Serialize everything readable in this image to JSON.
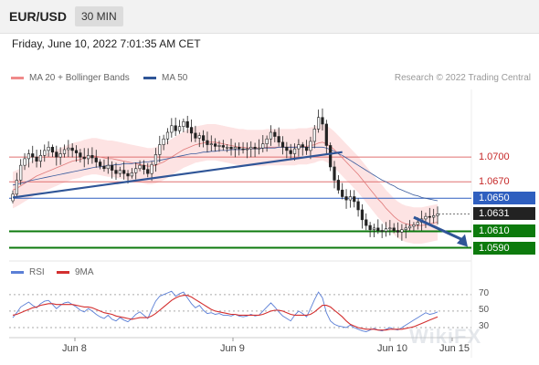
{
  "header": {
    "symbol": "EUR/USD",
    "timeframe": "30 MIN",
    "datetime": "Friday, June 10, 2022 7:01:35 AM CET"
  },
  "legend": {
    "ma20_label": "MA 20 + Bollinger Bands",
    "ma20_color": "#f08a8a",
    "ma50_label": "MA 50",
    "ma50_color": "#2f5597",
    "credit": "Research © 2022 Trading Central"
  },
  "rsi_legend": {
    "rsi_label": "RSI",
    "rsi_color": "#5b7fd6",
    "ma9_label": "9MA",
    "ma9_color": "#d32f2f"
  },
  "watermark": "WikiFX",
  "chart_data": [
    {
      "type": "candlestick",
      "title": "",
      "ylim": [
        1.0574,
        1.0782
      ],
      "price_levels": [
        {
          "label": "1.0700",
          "value": 1.07,
          "color": "#e07070",
          "kind": "resistance"
        },
        {
          "label": "1.0670",
          "value": 1.067,
          "color": "#e07070",
          "kind": "resistance"
        },
        {
          "label": "1.0650",
          "value": 1.065,
          "color": "#2f5fbf",
          "kind": "pivot"
        },
        {
          "label": "1.0631",
          "value": 1.0631,
          "color": "#222222",
          "kind": "last"
        },
        {
          "label": "1.0610",
          "value": 1.061,
          "color": "#0d7a0d",
          "kind": "support"
        },
        {
          "label": "1.0590",
          "value": 1.059,
          "color": "#0d7a0d",
          "kind": "support"
        }
      ],
      "x_ticks": [
        "Jun 8",
        "Jun 9",
        "Jun 10",
        "Jun 15"
      ],
      "close": [
        1.0655,
        1.0672,
        1.069,
        1.0698,
        1.0704,
        1.07,
        1.0695,
        1.0702,
        1.0708,
        1.0712,
        1.0706,
        1.07,
        1.0704,
        1.0709,
        1.0711,
        1.0708,
        1.0705,
        1.07,
        1.0698,
        1.0702,
        1.0699,
        1.0694,
        1.0689,
        1.0686,
        1.069,
        1.0684,
        1.068,
        1.0684,
        1.068,
        1.0677,
        1.0681,
        1.0686,
        1.069,
        1.0685,
        1.068,
        1.0691,
        1.0703,
        1.0715,
        1.0722,
        1.073,
        1.0738,
        1.0732,
        1.0737,
        1.0743,
        1.0736,
        1.0729,
        1.0723,
        1.0726,
        1.072,
        1.0715,
        1.0716,
        1.0713,
        1.0714,
        1.0712,
        1.0712,
        1.071,
        1.0712,
        1.071,
        1.0709,
        1.071,
        1.0712,
        1.071,
        1.0711,
        1.0716,
        1.0722,
        1.073,
        1.0725,
        1.0718,
        1.0712,
        1.0708,
        1.0704,
        1.071,
        1.0715,
        1.0712,
        1.0708,
        1.0719,
        1.0734,
        1.0748,
        1.074,
        1.0714,
        1.0688,
        1.0672,
        1.066,
        1.0652,
        1.0648,
        1.0652,
        1.0646,
        1.0636,
        1.0624,
        1.0617,
        1.0612,
        1.0614,
        1.0611,
        1.061,
        1.0613,
        1.0614,
        1.0611,
        1.0609,
        1.0612,
        1.0614,
        1.0616,
        1.0618,
        1.0621,
        1.0625,
        1.0628,
        1.0627,
        1.0629,
        1.0631
      ],
      "ma20": [
        1.066,
        1.0662,
        1.0665,
        1.0668,
        1.0671,
        1.0674,
        1.0677,
        1.0679,
        1.0681,
        1.0683,
        1.0685,
        1.0687,
        1.0689,
        1.0691,
        1.0693,
        1.0695,
        1.0696,
        1.0697,
        1.0699,
        1.07,
        1.0701,
        1.0701,
        1.07,
        1.0699,
        1.0698,
        1.0698,
        1.0697,
        1.0696,
        1.0695,
        1.0694,
        1.0693,
        1.0692,
        1.0691,
        1.069,
        1.0689,
        1.0689,
        1.069,
        1.0692,
        1.0694,
        1.0697,
        1.07,
        1.0703,
        1.0706,
        1.0709,
        1.0711,
        1.0713,
        1.0715,
        1.0716,
        1.0717,
        1.0718,
        1.0718,
        1.0718,
        1.0717,
        1.0716,
        1.0715,
        1.0714,
        1.0713,
        1.0712,
        1.0712,
        1.0711,
        1.0711,
        1.0711,
        1.0711,
        1.0711,
        1.0712,
        1.0712,
        1.0712,
        1.0712,
        1.0712,
        1.0712,
        1.0712,
        1.0712,
        1.0713,
        1.0713,
        1.0713,
        1.0714,
        1.0715,
        1.0717,
        1.0718,
        1.0716,
        1.0713,
        1.0709,
        1.0704,
        1.0699,
        1.0694,
        1.0689,
        1.0684,
        1.0679,
        1.0673,
        1.0667,
        1.0661,
        1.0655,
        1.0649,
        1.0644,
        1.0638,
        1.0633,
        1.0628,
        1.0624,
        1.0621,
        1.0619,
        1.0618,
        1.0617,
        1.0617,
        1.0617,
        1.0618,
        1.0619,
        1.062,
        1.0621
      ],
      "ma50": [
        1.0666,
        1.0667,
        1.0668,
        1.0669,
        1.0671,
        1.0672,
        1.0673,
        1.0674,
        1.0675,
        1.0676,
        1.0677,
        1.0678,
        1.0679,
        1.068,
        1.0681,
        1.0682,
        1.0683,
        1.0684,
        1.0685,
        1.0686,
        1.0687,
        1.0688,
        1.0688,
        1.0689,
        1.069,
        1.069,
        1.0691,
        1.0691,
        1.0692,
        1.0692,
        1.0692,
        1.0693,
        1.0693,
        1.0694,
        1.0694,
        1.0695,
        1.0695,
        1.0696,
        1.0697,
        1.0698,
        1.0699,
        1.07,
        1.0701,
        1.0702,
        1.0703,
        1.0704,
        1.0704,
        1.0705,
        1.0706,
        1.0706,
        1.0707,
        1.0707,
        1.0708,
        1.0708,
        1.0708,
        1.0709,
        1.0709,
        1.0709,
        1.0709,
        1.071,
        1.071,
        1.071,
        1.071,
        1.0711,
        1.0711,
        1.0711,
        1.0711,
        1.0712,
        1.0712,
        1.0712,
        1.0712,
        1.0712,
        1.0712,
        1.0712,
        1.0712,
        1.0712,
        1.0712,
        1.0712,
        1.0712,
        1.0711,
        1.0709,
        1.0707,
        1.0704,
        1.0702,
        1.0699,
        1.0696,
        1.0693,
        1.069,
        1.0687,
        1.0684,
        1.0681,
        1.0678,
        1.0675,
        1.0672,
        1.067,
        1.0667,
        1.0665,
        1.0662,
        1.066,
        1.0658,
        1.0656,
        1.0654,
        1.0653,
        1.0651,
        1.065,
        1.0649,
        1.0648,
        1.0647
      ],
      "bollinger_width": 0.0022,
      "trendline": {
        "from": [
          0,
          1.0651
        ],
        "to": [
          83,
          1.0706
        ]
      },
      "projection": {
        "from": [
          101,
          1.0627
        ],
        "to": [
          107,
          1.0591
        ]
      }
    },
    {
      "type": "line",
      "title": "RSI",
      "ylim": [
        20,
        82
      ],
      "y_ticks": [
        70,
        50,
        30
      ],
      "series": [
        {
          "name": "RSI",
          "values": [
            42,
            48,
            55,
            58,
            61,
            57,
            54,
            59,
            62,
            63,
            58,
            53,
            57,
            60,
            61,
            58,
            55,
            51,
            49,
            53,
            50,
            46,
            43,
            41,
            45,
            40,
            38,
            42,
            39,
            37,
            41,
            46,
            49,
            45,
            41,
            52,
            62,
            68,
            70,
            72,
            74,
            68,
            71,
            73,
            66,
            59,
            54,
            57,
            51,
            47,
            48,
            46,
            47,
            45,
            45,
            44,
            46,
            44,
            43,
            44,
            46,
            44,
            45,
            50,
            55,
            60,
            55,
            49,
            44,
            41,
            38,
            45,
            50,
            47,
            43,
            53,
            64,
            73,
            66,
            48,
            38,
            34,
            32,
            31,
            30,
            33,
            30,
            28,
            26,
            25,
            27,
            29,
            27,
            26,
            28,
            30,
            28,
            27,
            30,
            33,
            36,
            39,
            42,
            45,
            48,
            46,
            47,
            49
          ]
        },
        {
          "name": "9MA",
          "values": [
            45,
            46,
            48,
            50,
            52,
            54,
            55,
            57,
            58,
            59,
            59,
            58,
            58,
            58,
            58,
            58,
            57,
            56,
            55,
            55,
            54,
            52,
            50,
            48,
            47,
            46,
            44,
            43,
            42,
            41,
            40,
            41,
            42,
            42,
            42,
            44,
            47,
            51,
            55,
            59,
            63,
            66,
            68,
            69,
            69,
            67,
            64,
            61,
            58,
            55,
            52,
            50,
            49,
            48,
            47,
            46,
            46,
            45,
            45,
            45,
            45,
            45,
            45,
            46,
            48,
            50,
            51,
            51,
            50,
            48,
            46,
            45,
            45,
            45,
            45,
            46,
            49,
            53,
            57,
            57,
            55,
            51,
            47,
            43,
            38,
            34,
            32,
            30,
            29,
            28,
            28,
            28,
            27,
            27,
            27,
            28,
            28,
            28,
            28,
            29,
            30,
            31,
            33,
            35,
            37,
            39,
            41,
            43
          ]
        }
      ]
    }
  ]
}
